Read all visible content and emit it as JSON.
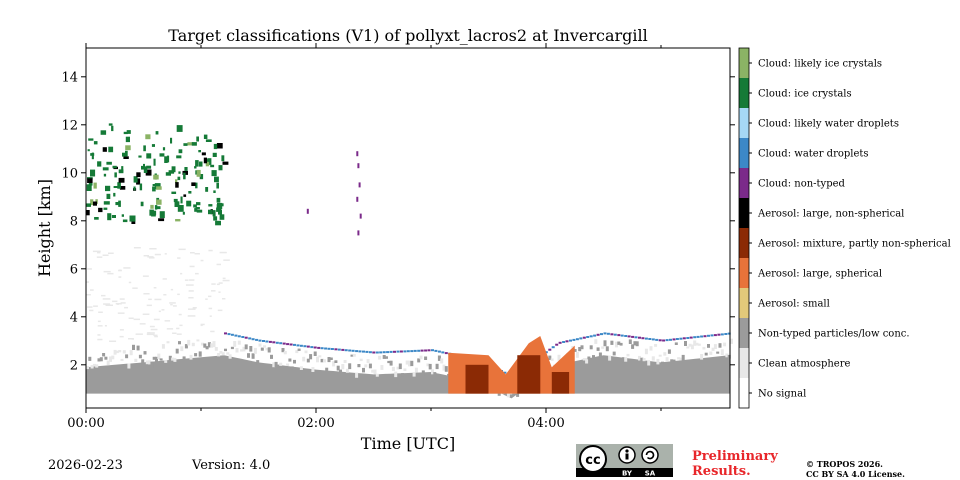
{
  "chart_data": {
    "type": "heatmap",
    "title": "Target classifications (V1) of pollyxt_lacros2 at Invercargill",
    "xlabel": "Time [UTC]",
    "ylabel": "Height [km]",
    "xlim_hours": [
      0,
      5.6
    ],
    "ylim_km": [
      0.2,
      15.2
    ],
    "x_ticks": [
      {
        "value": 0,
        "label": "00:00"
      },
      {
        "value": 2,
        "label": "02:00"
      },
      {
        "value": 4,
        "label": "04:00"
      }
    ],
    "x_minor_ticks": [
      1,
      3,
      5
    ],
    "y_ticks": [
      2,
      4,
      6,
      8,
      10,
      12,
      14
    ],
    "classes": [
      {
        "label": "Cloud: likely ice crystals",
        "color": "#8bb365"
      },
      {
        "label": "Cloud: ice crystals",
        "color": "#157a37"
      },
      {
        "label": "Cloud: likely water droplets",
        "color": "#a6d8f5"
      },
      {
        "label": "Cloud: water droplets",
        "color": "#3c88c7"
      },
      {
        "label": "Cloud: non-typed",
        "color": "#7b2a8a"
      },
      {
        "label": "Aerosol: large, non-spherical",
        "color": "#000000"
      },
      {
        "label": "Aerosol: mixture, partly non-spherical",
        "color": "#8b2a05"
      },
      {
        "label": "Aerosol: large, spherical",
        "color": "#e8733a"
      },
      {
        "label": "Aerosol: small",
        "color": "#e2c97a"
      },
      {
        "label": "Non-typed particles/low conc.",
        "color": "#9b9b9b"
      },
      {
        "label": "Clean atmosphere",
        "color": "#e8e8e8"
      },
      {
        "label": "No signal",
        "color": "#ffffff"
      }
    ],
    "regions": [
      {
        "name": "boundary-layer-low-conc",
        "class": "Non-typed particles/low conc.",
        "t_start": 0.0,
        "t_end": 5.6,
        "h_bottom": 0.8,
        "h_top_profile": [
          [
            0.0,
            2.8
          ],
          [
            0.5,
            3.0
          ],
          [
            1.2,
            3.3
          ],
          [
            1.5,
            3.0
          ],
          [
            2.0,
            2.7
          ],
          [
            2.5,
            2.5
          ],
          [
            3.0,
            2.6
          ],
          [
            3.4,
            2.2
          ],
          [
            3.7,
            1.5
          ],
          [
            4.1,
            2.9
          ],
          [
            4.5,
            3.3
          ],
          [
            5.0,
            3.0
          ],
          [
            5.6,
            3.3
          ]
        ]
      },
      {
        "name": "upper-ice-cloud",
        "class": "Cloud: ice crystals",
        "t_start": 0.0,
        "t_end": 1.2,
        "h_bottom": 8.0,
        "h_top": 12.4
      },
      {
        "name": "lofted-aerosol",
        "class": "Aerosol: large, spherical",
        "t_start": 3.15,
        "t_end": 4.25,
        "h_bottom": 0.8,
        "h_top": 3.2
      },
      {
        "name": "dust-mixture",
        "class": "Aerosol: mixture, partly non-spherical",
        "t_start": 3.3,
        "t_end": 4.2,
        "h_bottom": 0.8,
        "h_top": 2.4
      },
      {
        "name": "cloud-top-edge",
        "class": "Cloud: water droplets",
        "t_start": 1.2,
        "t_end": 5.6,
        "h_bottom": 2.4,
        "h_top": 3.7
      },
      {
        "name": "sparse-clear-signal",
        "class": "Clean atmosphere",
        "t_start": 0.0,
        "t_end": 1.2,
        "h_bottom": 3.0,
        "h_top": 7.0
      }
    ]
  },
  "footer": {
    "date": "2026-02-23",
    "version": "Version: 4.0",
    "preliminary_line1": "Preliminary",
    "preliminary_line2": "Results.",
    "copyright_line1": "© TROPOS 2026.",
    "copyright_line2": "CC BY SA 4.0 License.",
    "license_badge": {
      "main": "cc",
      "by": "BY",
      "sa": "SA"
    }
  }
}
